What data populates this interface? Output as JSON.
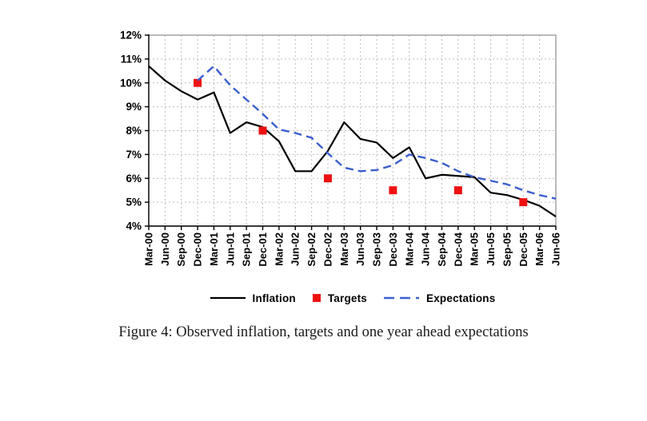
{
  "figure": {
    "caption": "Figure 4: Observed inflation, targets and one year ahead expectations"
  },
  "legend": {
    "items": [
      {
        "label": "Inflation",
        "swatch": "solid-line",
        "color": "#000000"
      },
      {
        "label": "Targets",
        "swatch": "square",
        "color": "#EE1111"
      },
      {
        "label": "Expectations",
        "swatch": "dashed-line",
        "color": "#3A5FCD"
      }
    ]
  },
  "chart_data": {
    "type": "line",
    "title": "",
    "xlabel": "",
    "ylabel": "",
    "categories": [
      "Mar-00",
      "Jun-00",
      "Sep-00",
      "Dec-00",
      "Mar-01",
      "Jun-01",
      "Sep-01",
      "Dec-01",
      "Mar-02",
      "Jun-02",
      "Sep-02",
      "Dec-02",
      "Mar-03",
      "Jun-03",
      "Sep-03",
      "Dec-03",
      "Mar-04",
      "Jun-04",
      "Sep-04",
      "Dec-04",
      "Mar-05",
      "Jun-05",
      "Sep-05",
      "Dec-05",
      "Mar-06",
      "Jun-06"
    ],
    "series": [
      {
        "name": "Inflation",
        "type": "line",
        "style": "solid",
        "color": "#000000",
        "values": [
          10.7,
          10.1,
          9.65,
          9.3,
          9.6,
          7.9,
          8.35,
          8.15,
          7.55,
          6.3,
          6.3,
          7.15,
          8.35,
          7.65,
          7.5,
          6.85,
          7.3,
          6.0,
          6.15,
          6.1,
          6.05,
          5.4,
          5.3,
          5.1,
          4.85,
          4.4
        ]
      },
      {
        "name": "Targets",
        "type": "scatter",
        "marker": "square",
        "color": "#EE1111",
        "values": [
          null,
          null,
          null,
          10.0,
          null,
          null,
          null,
          8.0,
          null,
          null,
          null,
          6.0,
          null,
          null,
          null,
          5.5,
          null,
          null,
          null,
          5.5,
          null,
          null,
          null,
          5.0,
          null,
          null
        ]
      },
      {
        "name": "Expectations",
        "type": "line",
        "style": "dashed",
        "color": "#3A5FCD",
        "values": [
          null,
          null,
          null,
          10.1,
          10.7,
          9.9,
          9.3,
          8.7,
          8.05,
          7.9,
          7.7,
          7.05,
          6.45,
          6.3,
          6.35,
          6.55,
          7.0,
          6.85,
          6.65,
          6.3,
          6.05,
          5.9,
          5.75,
          5.5,
          5.3,
          5.15
        ]
      }
    ],
    "ylim": [
      4,
      12
    ],
    "yticks": [
      4,
      5,
      6,
      7,
      8,
      9,
      10,
      11,
      12
    ],
    "ytick_labels": [
      "4%",
      "5%",
      "6%",
      "7%",
      "8%",
      "9%",
      "10%",
      "11%",
      "12%"
    ],
    "grid": true,
    "gridline_color": "#bdbdbd",
    "border_color": "#8c8c8c",
    "legend_position": "bottom"
  }
}
